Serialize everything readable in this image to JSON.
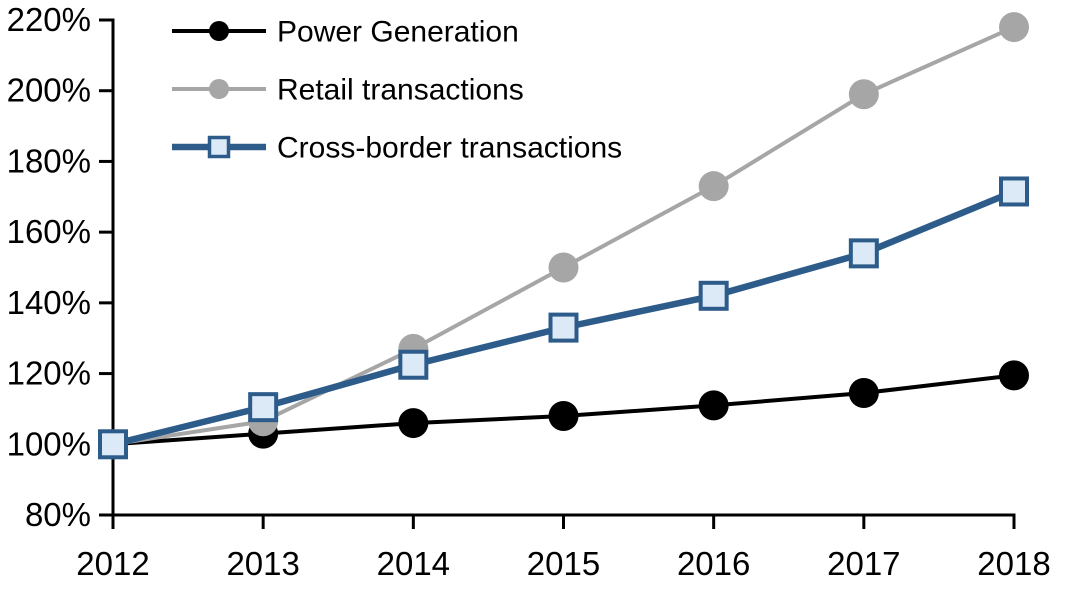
{
  "chart_data": {
    "type": "line",
    "title": "",
    "xlabel": "",
    "ylabel": "",
    "x": [
      2012,
      2013,
      2014,
      2015,
      2016,
      2017,
      2018
    ],
    "xtick_labels": [
      "2012",
      "2013",
      "2014",
      "2015",
      "2016",
      "2017",
      "2018"
    ],
    "ylim": [
      80,
      220
    ],
    "ytick_step": 20,
    "ytick_labels": [
      "80%",
      "100%",
      "120%",
      "140%",
      "160%",
      "180%",
      "200%",
      "220%"
    ],
    "grid": false,
    "legend_position": "top-left",
    "background_color": "#FFFFFF",
    "axis_color": "#000000",
    "series": [
      {
        "name": "Power Generation",
        "values": [
          100,
          103,
          106,
          108,
          111,
          114.5,
          119.5
        ],
        "color": "#000000",
        "marker": "circle",
        "marker_fill": "#000000",
        "line_width": 4
      },
      {
        "name": "Retail transactions",
        "values": [
          100,
          106.5,
          127,
          150,
          173,
          199,
          218
        ],
        "color": "#A6A6A6",
        "marker": "circle",
        "marker_fill": "#A6A6A6",
        "line_width": 4
      },
      {
        "name": "Cross-border transactions",
        "values": [
          100,
          110.5,
          122.5,
          133,
          142,
          154,
          171.5
        ],
        "color": "#2D5C8A",
        "marker": "square",
        "marker_fill": "#DCE9F7",
        "line_width": 6.5
      }
    ]
  }
}
